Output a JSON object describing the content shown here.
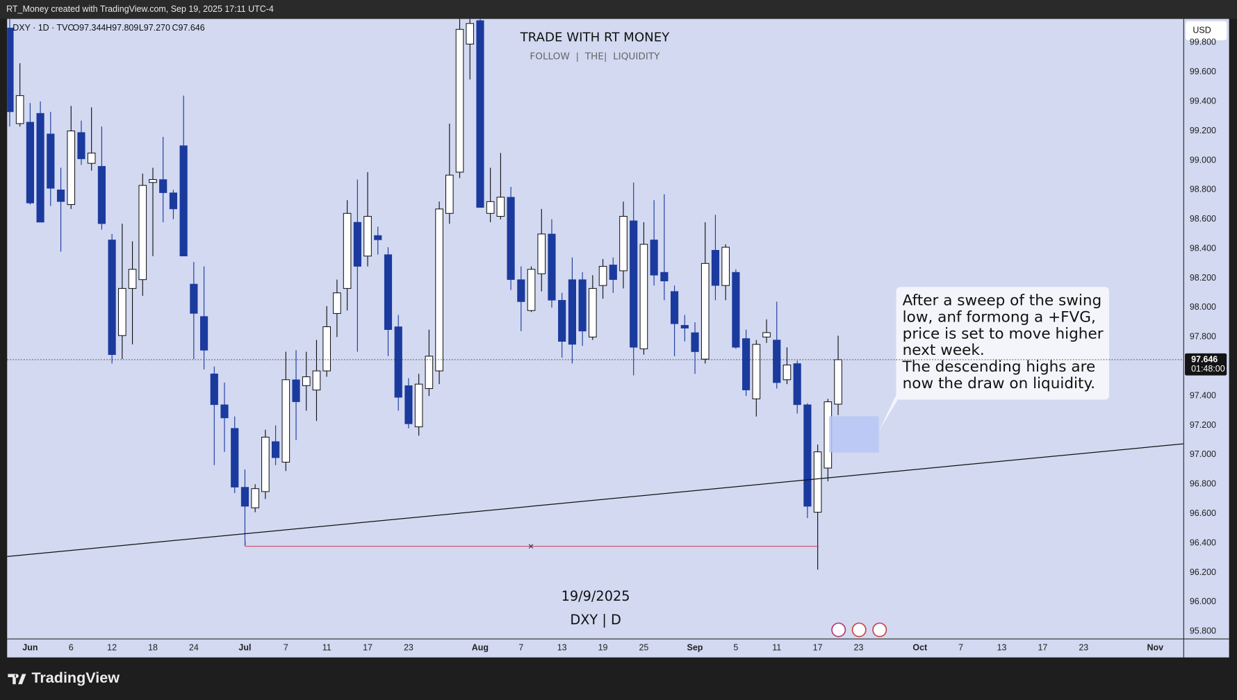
{
  "chart_data": {
    "type": "candlestick",
    "credit": "RT_Money created with TradingView.com, Sep 19, 2025 17:11 UTC-4",
    "symbol_info": "DXY · 1D · TVC",
    "ohlc_readout": [
      "O97.344",
      "H97.809",
      "L97.270",
      "C97.646"
    ],
    "title": "TRADE WITH RT MONEY",
    "subtitle": "FOLLOW  |  THE|  LIQUIDITY",
    "watermark_date": "19/9/2025",
    "watermark_symbol": "DXY | D",
    "currency": "USD",
    "countdown": "01:48:00",
    "brand": "TradingView",
    "annotation": [
      "After a sweep of the swing",
      "low, anf formong a +FVG,",
      "price is set to move higher",
      "next week.",
      "The descending highs are",
      "now the draw on liquidity."
    ],
    "up_color": "#ffffff",
    "down_color": "#1b3a9e",
    "categories": [
      null,
      null,
      "Jun",
      null,
      null,
      null,
      "6",
      null,
      null,
      null,
      "12",
      null,
      null,
      null,
      "18",
      null,
      null,
      null,
      "24",
      null,
      null,
      null,
      null,
      "Jul",
      null,
      null,
      null,
      "7",
      null,
      null,
      null,
      "11",
      null,
      null,
      null,
      "17",
      null,
      null,
      null,
      "23",
      null,
      null,
      null,
      null,
      null,
      null,
      "Aug",
      null,
      null,
      null,
      "7",
      null,
      null,
      null,
      "13",
      null,
      null,
      null,
      "19",
      null,
      null,
      null,
      "25",
      null,
      null,
      null,
      null,
      "Sep",
      null,
      null,
      null,
      "5",
      null,
      null,
      null,
      "11",
      null,
      null,
      null,
      "17",
      null,
      null,
      null,
      "23",
      null,
      null,
      null,
      null,
      null,
      "Oct",
      null,
      null,
      null,
      "7",
      null,
      null,
      null,
      "13",
      null,
      null,
      null,
      "17",
      null,
      null,
      null,
      "23",
      null,
      null,
      null,
      null,
      null,
      null,
      "Nov",
      null,
      null
    ],
    "open": [
      99.9,
      99.25,
      99.26,
      99.32,
      99.18,
      98.8,
      98.7,
      99.19,
      98.98,
      98.96,
      98.46,
      97.81,
      98.13,
      98.19,
      98.85,
      98.87,
      98.78,
      99.1,
      98.16,
      97.94,
      97.55,
      97.34,
      97.18,
      96.78,
      96.64,
      96.75,
      97.09,
      96.95,
      97.51,
      97.47,
      97.44,
      97.57,
      97.96,
      98.13,
      98.58,
      98.35,
      98.49,
      98.36,
      97.87,
      97.47,
      97.19,
      97.45,
      97.57,
      98.64,
      98.92,
      99.79,
      99.95,
      98.64,
      98.62,
      98.75,
      98.19,
      97.98,
      98.23,
      98.5,
      98.05,
      98.19,
      98.19,
      97.8,
      98.15,
      98.29,
      98.25,
      98.59,
      97.72,
      98.46,
      98.24,
      98.11,
      97.88,
      97.83,
      97.65,
      98.39,
      98.15,
      98.24,
      97.79,
      97.38,
      97.8,
      97.78,
      97.51,
      97.62,
      97.34,
      96.61,
      96.91,
      97.344,
      null,
      null,
      null,
      null,
      null,
      null,
      null,
      null,
      null,
      null,
      null,
      null,
      null,
      null,
      null,
      null,
      null,
      null,
      null,
      null,
      null,
      null,
      null,
      null,
      null,
      null,
      null,
      null,
      null,
      null,
      null,
      null,
      null
    ],
    "high": [
      99.96,
      99.66,
      99.39,
      99.4,
      99.33,
      98.95,
      99.37,
      99.27,
      99.36,
      99.23,
      98.5,
      98.57,
      98.45,
      98.91,
      98.95,
      99.16,
      98.8,
      99.44,
      98.31,
      98.28,
      97.6,
      97.49,
      97.26,
      96.9,
      96.8,
      97.17,
      97.2,
      97.7,
      97.71,
      97.7,
      97.78,
      98.01,
      98.19,
      98.73,
      98.87,
      98.92,
      98.55,
      98.41,
      97.95,
      97.52,
      97.55,
      97.85,
      98.72,
      99.25,
      99.96,
      99.96,
      99.96,
      98.95,
      99.05,
      98.82,
      98.28,
      98.28,
      98.67,
      98.6,
      98.1,
      98.34,
      98.24,
      98.22,
      98.33,
      98.34,
      98.72,
      98.85,
      98.58,
      98.73,
      98.77,
      98.15,
      97.95,
      97.9,
      98.58,
      98.63,
      98.43,
      98.26,
      97.85,
      97.78,
      97.92,
      98.04,
      97.73,
      97.64,
      97.35,
      97.07,
      97.38,
      97.809,
      null,
      null,
      null,
      null,
      null,
      null,
      null,
      null,
      null,
      null,
      null,
      null,
      null,
      null,
      null,
      null,
      null,
      null,
      null,
      null,
      null,
      null,
      null,
      null,
      null,
      null,
      null,
      null,
      null,
      null,
      null,
      null,
      null
    ],
    "low": [
      99.23,
      99.23,
      98.7,
      98.58,
      98.69,
      98.38,
      98.67,
      98.97,
      98.93,
      98.53,
      97.62,
      97.65,
      97.75,
      98.08,
      98.35,
      98.58,
      98.6,
      98.35,
      97.65,
      97.58,
      96.93,
      97.02,
      96.74,
      96.38,
      96.61,
      96.7,
      96.93,
      96.89,
      97.1,
      97.3,
      97.23,
      97.53,
      97.8,
      97.98,
      97.7,
      98.28,
      98.36,
      97.67,
      97.3,
      97.18,
      97.13,
      97.4,
      97.48,
      98.57,
      98.88,
      99.55,
      98.68,
      98.58,
      98.6,
      98.12,
      97.84,
      97.97,
      98.11,
      98.0,
      97.66,
      97.62,
      97.74,
      97.78,
      98.06,
      98.1,
      98.13,
      97.54,
      97.68,
      98.15,
      98.05,
      97.67,
      97.77,
      97.55,
      97.62,
      98.05,
      98.05,
      97.72,
      97.4,
      97.26,
      97.76,
      97.45,
      97.48,
      97.28,
      96.57,
      96.22,
      96.82,
      97.27,
      null,
      null,
      null,
      null,
      null,
      null,
      null,
      null,
      null,
      null,
      null,
      null,
      null,
      null,
      null,
      null,
      null,
      null,
      null,
      null,
      null,
      null,
      null,
      null,
      null,
      null,
      null,
      null,
      null,
      null,
      null,
      null,
      null
    ],
    "close": [
      99.33,
      99.44,
      98.71,
      98.58,
      98.81,
      98.72,
      99.2,
      99.01,
      99.05,
      98.57,
      97.68,
      98.13,
      98.26,
      98.83,
      98.87,
      98.78,
      98.67,
      98.35,
      97.96,
      97.71,
      97.34,
      97.25,
      96.78,
      96.65,
      96.77,
      97.12,
      96.98,
      97.51,
      97.36,
      97.53,
      97.57,
      97.87,
      98.1,
      98.64,
      98.28,
      98.62,
      98.46,
      97.85,
      97.39,
      97.21,
      97.48,
      97.67,
      98.67,
      98.9,
      99.89,
      99.93,
      98.68,
      98.72,
      98.75,
      98.19,
      98.04,
      98.26,
      98.5,
      98.05,
      97.77,
      97.75,
      97.84,
      98.13,
      98.28,
      98.19,
      98.62,
      97.73,
      98.43,
      98.22,
      98.18,
      97.89,
      97.86,
      97.7,
      98.3,
      98.15,
      98.41,
      97.73,
      97.44,
      97.75,
      97.83,
      97.49,
      97.61,
      97.34,
      96.65,
      97.02,
      97.36,
      97.646,
      null,
      null,
      null,
      null,
      null,
      null,
      null,
      null,
      null,
      null,
      null,
      null,
      null,
      null,
      null,
      null,
      null,
      null,
      null,
      null,
      null,
      null,
      null,
      null,
      null,
      null,
      null,
      null,
      null,
      null,
      null,
      null,
      null
    ],
    "ylim": [
      95.752,
      99.961
    ],
    "yticks": [
      {
        "value": 95.8,
        "label": "95.800"
      },
      {
        "value": 96.0,
        "label": "96.000"
      },
      {
        "value": 96.2,
        "label": "96.200"
      },
      {
        "value": 96.4,
        "label": "96.400"
      },
      {
        "value": 96.6,
        "label": "96.600"
      },
      {
        "value": 96.8,
        "label": "96.800"
      },
      {
        "value": 97.0,
        "label": "97.000"
      },
      {
        "value": 97.2,
        "label": "97.200"
      },
      {
        "value": 97.4,
        "label": "97.400"
      },
      {
        "value": 97.6,
        "label": "97.600"
      },
      {
        "value": 97.8,
        "label": "97.800"
      },
      {
        "value": 98.0,
        "label": "98.000"
      },
      {
        "value": 98.2,
        "label": "98.200"
      },
      {
        "value": 98.4,
        "label": "98.400"
      },
      {
        "value": 98.6,
        "label": "98.600"
      },
      {
        "value": 98.8,
        "label": "98.800"
      },
      {
        "value": 99.0,
        "label": "99.000"
      },
      {
        "value": 99.2,
        "label": "99.200"
      },
      {
        "value": 99.4,
        "label": "99.400"
      },
      {
        "value": 99.6,
        "label": "99.600"
      },
      {
        "value": 99.8,
        "label": "99.800"
      }
    ],
    "grid": false
  }
}
